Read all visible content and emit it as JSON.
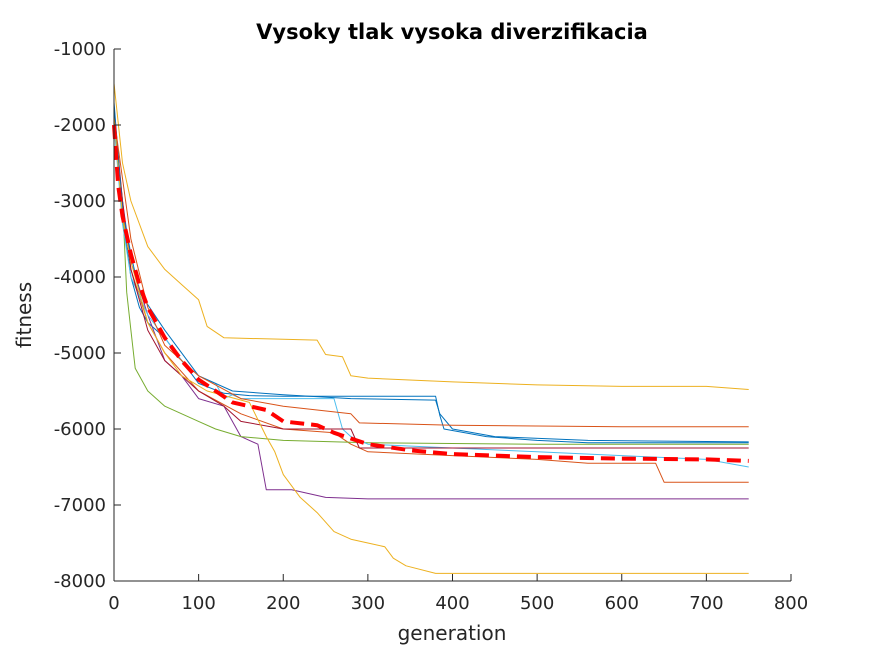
{
  "chart_data": {
    "type": "line",
    "title": "Vysoky tlak vysoka diverzifikacia",
    "xlabel": "generation",
    "ylabel": "fitness",
    "xlim": [
      0,
      800
    ],
    "ylim": [
      -8000,
      -1000
    ],
    "xticks": [
      0,
      100,
      200,
      300,
      400,
      500,
      600,
      700,
      800
    ],
    "yticks": [
      -8000,
      -7000,
      -6000,
      -5000,
      -4000,
      -3000,
      -2000,
      -1000
    ],
    "xtick_labels": [
      "0",
      "100",
      "200",
      "300",
      "400",
      "500",
      "600",
      "700",
      "800"
    ],
    "ytick_labels": [
      "-8000",
      "-7000",
      "-6000",
      "-5000",
      "-4000",
      "-3000",
      "-2000",
      "-1000"
    ],
    "grid": false,
    "series": [
      {
        "color": "#0072bd",
        "points": [
          [
            0,
            -1700
          ],
          [
            5,
            -2400
          ],
          [
            10,
            -3200
          ],
          [
            20,
            -4000
          ],
          [
            30,
            -4400
          ],
          [
            40,
            -4600
          ],
          [
            60,
            -4800
          ],
          [
            80,
            -5100
          ],
          [
            100,
            -5400
          ],
          [
            130,
            -5530
          ],
          [
            160,
            -5560
          ],
          [
            200,
            -5570
          ],
          [
            260,
            -5570
          ],
          [
            380,
            -5570
          ],
          [
            385,
            -5820
          ],
          [
            390,
            -6000
          ],
          [
            440,
            -6100
          ],
          [
            500,
            -6150
          ],
          [
            560,
            -6180
          ],
          [
            750,
            -6180
          ]
        ]
      },
      {
        "color": "#d95319",
        "points": [
          [
            0,
            -1800
          ],
          [
            10,
            -3100
          ],
          [
            20,
            -3900
          ],
          [
            40,
            -4600
          ],
          [
            60,
            -5000
          ],
          [
            100,
            -5500
          ],
          [
            150,
            -5800
          ],
          [
            200,
            -6000
          ],
          [
            260,
            -6050
          ],
          [
            280,
            -6200
          ],
          [
            300,
            -6300
          ],
          [
            400,
            -6350
          ],
          [
            500,
            -6400
          ],
          [
            560,
            -6450
          ],
          [
            640,
            -6450
          ],
          [
            650,
            -6700
          ],
          [
            750,
            -6700
          ]
        ]
      },
      {
        "color": "#edb120",
        "points": [
          [
            0,
            -1450
          ],
          [
            10,
            -2500
          ],
          [
            20,
            -3000
          ],
          [
            40,
            -3600
          ],
          [
            60,
            -3900
          ],
          [
            80,
            -4100
          ],
          [
            100,
            -4300
          ],
          [
            110,
            -4650
          ],
          [
            130,
            -4800
          ],
          [
            200,
            -4820
          ],
          [
            240,
            -4830
          ],
          [
            250,
            -5020
          ],
          [
            270,
            -5050
          ],
          [
            280,
            -5300
          ],
          [
            300,
            -5330
          ],
          [
            400,
            -5380
          ],
          [
            500,
            -5420
          ],
          [
            600,
            -5440
          ],
          [
            700,
            -5440
          ],
          [
            750,
            -5480
          ]
        ]
      },
      {
        "color": "#7e2f8e",
        "points": [
          [
            0,
            -1900
          ],
          [
            10,
            -3000
          ],
          [
            20,
            -3800
          ],
          [
            40,
            -4500
          ],
          [
            60,
            -5100
          ],
          [
            80,
            -5300
          ],
          [
            100,
            -5600
          ],
          [
            130,
            -5700
          ],
          [
            150,
            -6100
          ],
          [
            170,
            -6200
          ],
          [
            180,
            -6800
          ],
          [
            210,
            -6800
          ],
          [
            250,
            -6900
          ],
          [
            300,
            -6920
          ],
          [
            500,
            -6920
          ],
          [
            750,
            -6920
          ]
        ]
      },
      {
        "color": "#77ac30",
        "points": [
          [
            0,
            -2000
          ],
          [
            10,
            -3000
          ],
          [
            15,
            -4200
          ],
          [
            20,
            -4700
          ],
          [
            25,
            -5200
          ],
          [
            40,
            -5500
          ],
          [
            60,
            -5700
          ],
          [
            80,
            -5800
          ],
          [
            100,
            -5900
          ],
          [
            120,
            -6000
          ],
          [
            150,
            -6100
          ],
          [
            200,
            -6150
          ],
          [
            300,
            -6180
          ],
          [
            500,
            -6200
          ],
          [
            750,
            -6200
          ]
        ]
      },
      {
        "color": "#4dbeee",
        "points": [
          [
            0,
            -2000
          ],
          [
            10,
            -3300
          ],
          [
            20,
            -4000
          ],
          [
            40,
            -4500
          ],
          [
            60,
            -4800
          ],
          [
            80,
            -5100
          ],
          [
            100,
            -5300
          ],
          [
            120,
            -5400
          ],
          [
            130,
            -5600
          ],
          [
            140,
            -5550
          ],
          [
            150,
            -5600
          ],
          [
            200,
            -5600
          ],
          [
            260,
            -5600
          ],
          [
            270,
            -6000
          ],
          [
            280,
            -6100
          ],
          [
            300,
            -6200
          ],
          [
            400,
            -6250
          ],
          [
            500,
            -6300
          ],
          [
            600,
            -6350
          ],
          [
            700,
            -6400
          ],
          [
            750,
            -6500
          ]
        ]
      },
      {
        "color": "#a2142f",
        "points": [
          [
            0,
            -1800
          ],
          [
            10,
            -3000
          ],
          [
            20,
            -3900
          ],
          [
            40,
            -4700
          ],
          [
            60,
            -5100
          ],
          [
            80,
            -5300
          ],
          [
            100,
            -5500
          ],
          [
            130,
            -5700
          ],
          [
            150,
            -5900
          ],
          [
            200,
            -6000
          ],
          [
            280,
            -6000
          ],
          [
            290,
            -6250
          ],
          [
            400,
            -6250
          ],
          [
            600,
            -6250
          ],
          [
            750,
            -6250
          ]
        ]
      },
      {
        "color": "#0072bd",
        "points": [
          [
            0,
            -1750
          ],
          [
            10,
            -3100
          ],
          [
            20,
            -3700
          ],
          [
            30,
            -4200
          ],
          [
            60,
            -4700
          ],
          [
            100,
            -5300
          ],
          [
            140,
            -5500
          ],
          [
            200,
            -5550
          ],
          [
            280,
            -5600
          ],
          [
            380,
            -5620
          ],
          [
            385,
            -5800
          ],
          [
            400,
            -6000
          ],
          [
            450,
            -6100
          ],
          [
            560,
            -6150
          ],
          [
            750,
            -6170
          ]
        ]
      },
      {
        "color": "#d95319",
        "points": [
          [
            0,
            -1900
          ],
          [
            20,
            -3500
          ],
          [
            40,
            -4400
          ],
          [
            60,
            -4900
          ],
          [
            100,
            -5300
          ],
          [
            150,
            -5600
          ],
          [
            200,
            -5700
          ],
          [
            280,
            -5800
          ],
          [
            290,
            -5920
          ],
          [
            400,
            -5950
          ],
          [
            600,
            -5970
          ],
          [
            750,
            -5970
          ]
        ]
      },
      {
        "color": "#edb120",
        "points": [
          [
            0,
            -1900
          ],
          [
            10,
            -3200
          ],
          [
            20,
            -3800
          ],
          [
            40,
            -4600
          ],
          [
            60,
            -5000
          ],
          [
            80,
            -5300
          ],
          [
            110,
            -5500
          ],
          [
            160,
            -5650
          ],
          [
            180,
            -6100
          ],
          [
            190,
            -6300
          ],
          [
            200,
            -6600
          ],
          [
            220,
            -6900
          ],
          [
            240,
            -7100
          ],
          [
            260,
            -7350
          ],
          [
            280,
            -7450
          ],
          [
            300,
            -7500
          ],
          [
            320,
            -7550
          ],
          [
            330,
            -7700
          ],
          [
            345,
            -7800
          ],
          [
            380,
            -7900
          ],
          [
            500,
            -7900
          ],
          [
            750,
            -7900
          ]
        ]
      },
      {
        "color": "#ff0000",
        "dashed": true,
        "width": 4,
        "points": [
          [
            0,
            -2000
          ],
          [
            5,
            -2800
          ],
          [
            10,
            -3200
          ],
          [
            20,
            -3700
          ],
          [
            30,
            -4100
          ],
          [
            40,
            -4400
          ],
          [
            60,
            -4800
          ],
          [
            80,
            -5100
          ],
          [
            100,
            -5350
          ],
          [
            120,
            -5500
          ],
          [
            140,
            -5650
          ],
          [
            180,
            -5750
          ],
          [
            200,
            -5900
          ],
          [
            240,
            -5950
          ],
          [
            260,
            -6050
          ],
          [
            300,
            -6200
          ],
          [
            350,
            -6280
          ],
          [
            400,
            -6330
          ],
          [
            450,
            -6350
          ],
          [
            500,
            -6370
          ],
          [
            600,
            -6390
          ],
          [
            700,
            -6400
          ],
          [
            750,
            -6420
          ]
        ]
      }
    ]
  }
}
